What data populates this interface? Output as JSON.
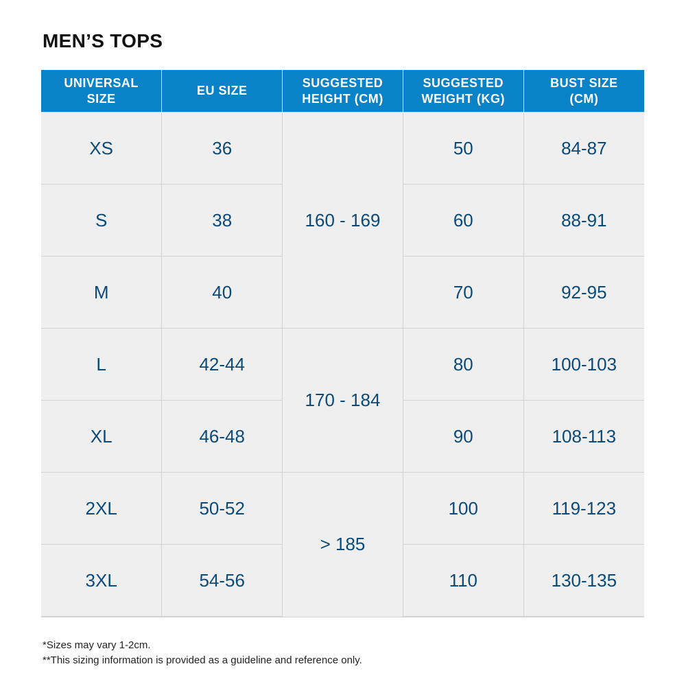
{
  "title": "MEN’S TOPS",
  "headers": [
    [
      "UNIVERSAL",
      "SIZE"
    ],
    [
      "EU SIZE"
    ],
    [
      "SUGGESTED",
      "HEIGHT (CM)"
    ],
    [
      "SUGGESTED",
      "WEIGHT (KG)"
    ],
    [
      "BUST SIZE",
      "(CM)"
    ]
  ],
  "rows": [
    {
      "universal": "XS",
      "eu": "36",
      "weight": "50",
      "bust": "84-87"
    },
    {
      "universal": "S",
      "eu": "38",
      "weight": "60",
      "bust": "88-91"
    },
    {
      "universal": "M",
      "eu": "40",
      "weight": "70",
      "bust": "92-95"
    },
    {
      "universal": "L",
      "eu": "42-44",
      "weight": "80",
      "bust": "100-103"
    },
    {
      "universal": "XL",
      "eu": "46-48",
      "weight": "90",
      "bust": "108-113"
    },
    {
      "universal": "2XL",
      "eu": "50-52",
      "weight": "100",
      "bust": "119-123"
    },
    {
      "universal": "3XL",
      "eu": "54-56",
      "weight": "110",
      "bust": "130-135"
    }
  ],
  "height_groups": [
    "160 - 169",
    "170 - 184",
    "> 185"
  ],
  "notes": [
    "*Sizes may vary 1-2cm.",
    "**This sizing information is provided as a guideline and reference only."
  ],
  "colors": {
    "header_bg": "#0a82c8",
    "header_text": "#ffffff",
    "cell_bg": "#efefef",
    "cell_text": "#0b4a78",
    "title_text": "#111111"
  }
}
